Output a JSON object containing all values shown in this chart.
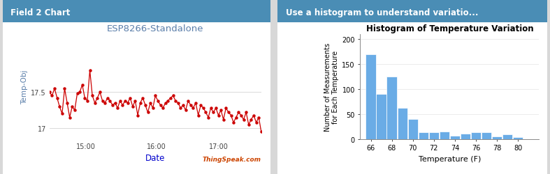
{
  "left_chart": {
    "title": "ESP8266-Standalone",
    "xlabel": "Date",
    "ylabel": "Temp-Obj",
    "xticks": [
      "15:00",
      "16:00",
      "17:00"
    ],
    "yticks": [
      17,
      17.5
    ],
    "ylim": [
      16.85,
      18.3
    ],
    "line_color": "#cc0000",
    "grid_color": "#cccccc",
    "title_color": "#5b7faa",
    "xlabel_color": "#0000cc",
    "ylabel_color": "#5b7faa",
    "watermark": "ThingSpeak.com",
    "watermark_color": "#cc4400",
    "header_text": "Field 2 Chart",
    "header_bg": "#4a8db5",
    "y_values": [
      17.5,
      17.45,
      17.55,
      17.42,
      17.3,
      17.2,
      17.55,
      17.35,
      17.15,
      17.3,
      17.25,
      17.48,
      17.5,
      17.6,
      17.42,
      17.38,
      17.8,
      17.45,
      17.35,
      17.42,
      17.5,
      17.38,
      17.35,
      17.42,
      17.38,
      17.32,
      17.35,
      17.28,
      17.38,
      17.32,
      17.38,
      17.35,
      17.42,
      17.3,
      17.38,
      17.18,
      17.35,
      17.42,
      17.32,
      17.22,
      17.35,
      17.28,
      17.45,
      17.38,
      17.32,
      17.28,
      17.35,
      17.38,
      17.42,
      17.45,
      17.38,
      17.35,
      17.28,
      17.32,
      17.25,
      17.38,
      17.32,
      17.28,
      17.35,
      17.18,
      17.32,
      17.28,
      17.22,
      17.15,
      17.28,
      17.22,
      17.28,
      17.18,
      17.25,
      17.12,
      17.28,
      17.22,
      17.18,
      17.08,
      17.15,
      17.22,
      17.18,
      17.12,
      17.22,
      17.05,
      17.12,
      17.18,
      17.08,
      17.15,
      16.95
    ]
  },
  "right_chart": {
    "title": "Histogram of Temperature Variation",
    "xlabel": "Temperature (F)",
    "ylabel_line1": "Number of Measurements",
    "ylabel_line2": "for Each Temperature",
    "bar_color": "#6aace6",
    "bar_edge_color": "#ffffff",
    "header_text": "Use a histogram to understand variatio...",
    "header_bg": "#4a8db5",
    "xticks": [
      66,
      68,
      70,
      72,
      74,
      76,
      78,
      80
    ],
    "xlim": [
      65,
      82
    ],
    "ylim": [
      0,
      210
    ],
    "yticks": [
      0,
      50,
      100,
      150,
      200
    ],
    "bin_centers": [
      66,
      67,
      68,
      69,
      70,
      71,
      72,
      73,
      74,
      75,
      76,
      77,
      78,
      79,
      80
    ],
    "bar_heights": [
      170,
      90,
      125,
      63,
      40,
      13,
      13,
      15,
      6,
      11,
      13,
      13,
      5,
      10,
      4
    ]
  }
}
